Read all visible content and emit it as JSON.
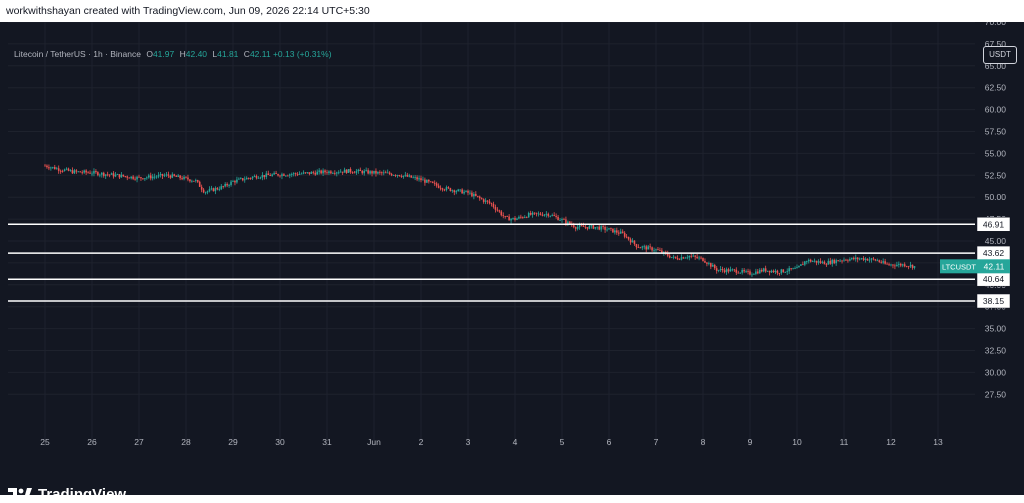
{
  "header": {
    "attribution": "workwithshayan created with TradingView.com, Jun 09, 2026 22:14 UTC+5:30"
  },
  "legend": {
    "symbol": "Litecoin / TetherUS · 1h · Binance",
    "o_label": "O",
    "o": "41.97",
    "h_label": "H",
    "h": "42.40",
    "l_label": "L",
    "l": "41.81",
    "c_label": "C",
    "c": "42.11",
    "change": "+0.13 (+0.31%)"
  },
  "currency_button": "USDT",
  "brand": {
    "name": "TradingView",
    "logo_icon": "tradingview-logo-icon"
  },
  "colors": {
    "background": "#131722",
    "up": "#26a69a",
    "down": "#ef5350",
    "level_line": "#ffffff",
    "grid": "#1e222d"
  },
  "chart_data": {
    "type": "candlestick",
    "symbol": "LTCUSDT",
    "interval": "1h",
    "yaxis": {
      "ticks": [
        "27.50",
        "30.00",
        "32.50",
        "35.00",
        "37.50",
        "40.00",
        "42.50",
        "45.00",
        "47.50",
        "50.00",
        "52.50",
        "55.00",
        "57.50",
        "60.00",
        "62.50",
        "65.00",
        "67.50",
        "70.00"
      ],
      "ylim": [
        25.5,
        70.5
      ]
    },
    "xaxis": {
      "labels": [
        "25",
        "26",
        "27",
        "28",
        "29",
        "30",
        "31",
        "Jun",
        "2",
        "3",
        "4",
        "5",
        "6",
        "7",
        "8",
        "9",
        "10",
        "11",
        "12",
        "13"
      ]
    },
    "horizontal_levels": [
      {
        "value": 46.91,
        "label": "46.91"
      },
      {
        "value": 43.62,
        "label": "43.62"
      },
      {
        "value": 40.64,
        "label": "40.64"
      },
      {
        "value": 38.15,
        "label": "38.15"
      }
    ],
    "last_price": {
      "label": "LTCUSDT",
      "value": 42.11,
      "value_label": "42.11"
    },
    "price_path": [
      [
        0.0,
        53.6
      ],
      [
        0.3,
        53.2
      ],
      [
        0.6,
        52.9
      ],
      [
        1.0,
        52.8
      ],
      [
        1.5,
        52.5
      ],
      [
        2.0,
        52.2
      ],
      [
        2.6,
        52.5
      ],
      [
        3.2,
        51.9
      ],
      [
        3.4,
        50.6
      ],
      [
        3.8,
        51.2
      ],
      [
        4.0,
        51.8
      ],
      [
        4.5,
        52.4
      ],
      [
        5.0,
        52.6
      ],
      [
        5.5,
        52.7
      ],
      [
        6.0,
        52.9
      ],
      [
        6.5,
        53.0
      ],
      [
        7.0,
        52.8
      ],
      [
        7.5,
        52.6
      ],
      [
        8.0,
        52.0
      ],
      [
        8.5,
        51.0
      ],
      [
        9.0,
        50.5
      ],
      [
        9.5,
        49.2
      ],
      [
        9.8,
        47.6
      ],
      [
        10.0,
        47.5
      ],
      [
        10.3,
        48.0
      ],
      [
        10.7,
        48.1
      ],
      [
        11.0,
        47.4
      ],
      [
        11.3,
        46.6
      ],
      [
        11.7,
        46.6
      ],
      [
        12.0,
        46.3
      ],
      [
        12.3,
        45.8
      ],
      [
        12.6,
        44.4
      ],
      [
        13.0,
        44.0
      ],
      [
        13.4,
        43.0
      ],
      [
        13.7,
        43.3
      ],
      [
        14.0,
        42.9
      ],
      [
        14.3,
        41.7
      ],
      [
        14.7,
        41.6
      ],
      [
        15.0,
        41.3
      ],
      [
        15.3,
        41.7
      ],
      [
        15.6,
        41.5
      ],
      [
        16.0,
        41.8
      ],
      [
        16.2,
        42.8
      ],
      [
        16.6,
        42.5
      ],
      [
        17.0,
        42.9
      ],
      [
        17.4,
        43.0
      ],
      [
        17.7,
        42.8
      ],
      [
        17.9,
        42.3
      ],
      [
        18.3,
        42.3
      ],
      [
        18.5,
        42.1
      ]
    ],
    "grid": true
  }
}
